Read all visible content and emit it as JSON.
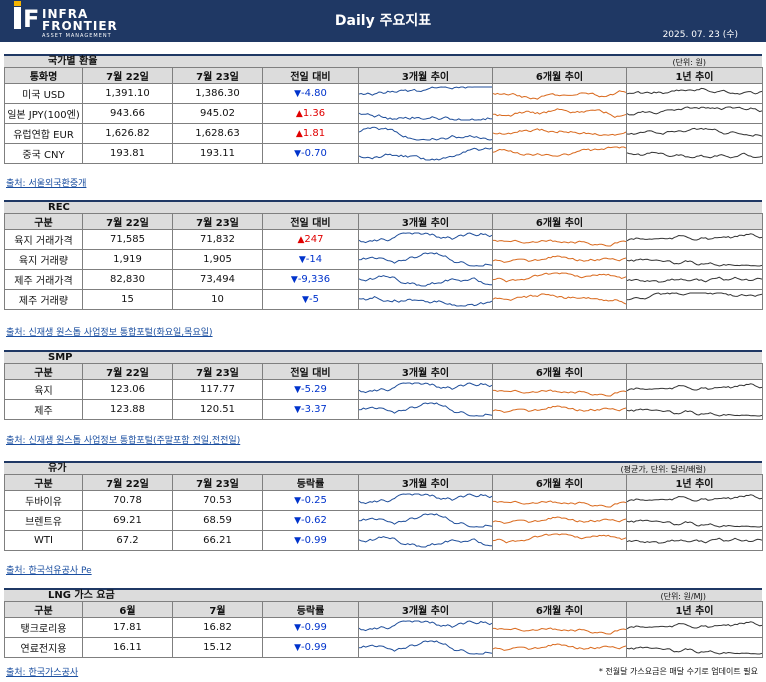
{
  "header": {
    "logo_letter": "F",
    "logo_line1": "INFRA",
    "logo_line2": "FRONTIER",
    "logo_line3": "ASSET MANAGEMENT",
    "title": "Daily 주요지표",
    "date": "2025. 07. 23 (수)"
  },
  "colors": {
    "header": "#1f3864",
    "bar": "#dcdcdc",
    "up": "#e00000",
    "down": "#0033cc",
    "trend3m": "#1f4e9a",
    "trend6m": "#d9691d",
    "trend1y": "#333333"
  },
  "fx": {
    "title": "국가별 환율",
    "unit": "(단위: 원)",
    "columns": [
      "통화명",
      "7월 22일",
      "7월 23일",
      "전일 대비",
      "3개월 추이",
      "6개월 추이",
      "1년 추이"
    ],
    "rows": [
      {
        "label": "미국 USD",
        "prev": "1,391.10",
        "curr": "1,386.30",
        "dir": "down",
        "change": "-4.80"
      },
      {
        "label": "일본 JPY(100엔)",
        "prev": "943.66",
        "curr": "945.02",
        "dir": "up",
        "change": "1.36"
      },
      {
        "label": "유럽연합 EUR",
        "prev": "1,626.82",
        "curr": "1,628.63",
        "dir": "up",
        "change": "1.81"
      },
      {
        "label": "중국 CNY",
        "prev": "193.81",
        "curr": "193.11",
        "dir": "down",
        "change": "-0.70"
      }
    ],
    "source": "출처: 서울외국환중개"
  },
  "rec": {
    "title": "REC",
    "columns": [
      "구분",
      "7월 22일",
      "7월 23일",
      "전일 대비",
      "3개월 추이",
      "6개월 추이",
      ""
    ],
    "rows": [
      {
        "label": "육지 거래가격",
        "prev": "71,585",
        "curr": "71,832",
        "dir": "up",
        "change": "247"
      },
      {
        "label": "육지 거래량",
        "prev": "1,919",
        "curr": "1,905",
        "dir": "down",
        "change": "-14"
      },
      {
        "label": "제주 거래가격",
        "prev": "82,830",
        "curr": "73,494",
        "dir": "down",
        "change": "-9,336"
      },
      {
        "label": "제주 거래량",
        "prev": "15",
        "curr": "10",
        "dir": "down",
        "change": "-5"
      }
    ],
    "source": "출처: 신재생 원스톱 사업정보 통합포털(화요일,목요일)"
  },
  "smp": {
    "title": "SMP",
    "columns": [
      "구분",
      "7월 22일",
      "7월 23일",
      "전일 대비",
      "3개월 추이",
      "6개월 추이",
      ""
    ],
    "rows": [
      {
        "label": "육지",
        "prev": "123.06",
        "curr": "117.77",
        "dir": "down",
        "change": "-5.29"
      },
      {
        "label": "제주",
        "prev": "123.88",
        "curr": "120.51",
        "dir": "down",
        "change": "-3.37"
      }
    ],
    "source": "출처: 신재생 원스톱 사업정보 통합포털(주말포함 전일,전전일)"
  },
  "oil": {
    "title": "유가",
    "unit": "(평균가, 단위: 달러/배럴)",
    "columns": [
      "구분",
      "7월 22일",
      "7월 23일",
      "등락률",
      "3개월 추이",
      "6개월 추이",
      "1년 추이"
    ],
    "rows": [
      {
        "label": "두바이유",
        "prev": "70.78",
        "curr": "70.53",
        "dir": "down",
        "change": "-0.25"
      },
      {
        "label": "브렌트유",
        "prev": "69.21",
        "curr": "68.59",
        "dir": "down",
        "change": "-0.62"
      },
      {
        "label": "WTI",
        "prev": "67.2",
        "curr": "66.21",
        "dir": "down",
        "change": "-0.99"
      }
    ],
    "source": "출처: 한국석유공사 Pe"
  },
  "lng": {
    "title": "LNG 가스 요금",
    "unit": "(단위: 원/MJ)",
    "columns": [
      "구분",
      "6월",
      "7월",
      "등락률",
      "3개월 추이",
      "6개월 추이",
      "1년 추이"
    ],
    "rows": [
      {
        "label": "탱크로리용",
        "prev": "17.81",
        "curr": "16.82",
        "dir": "down",
        "change": "-0.99"
      },
      {
        "label": "연료전지용",
        "prev": "16.11",
        "curr": "15.12",
        "dir": "down",
        "change": "-0.99"
      }
    ],
    "source": "출처: 한국가스공사",
    "note": "* 전월달 가스요금은 매달 수기로 업데이트 필요"
  },
  "icons": {
    "up": "triangle-up-icon",
    "down": "triangle-down-icon"
  }
}
